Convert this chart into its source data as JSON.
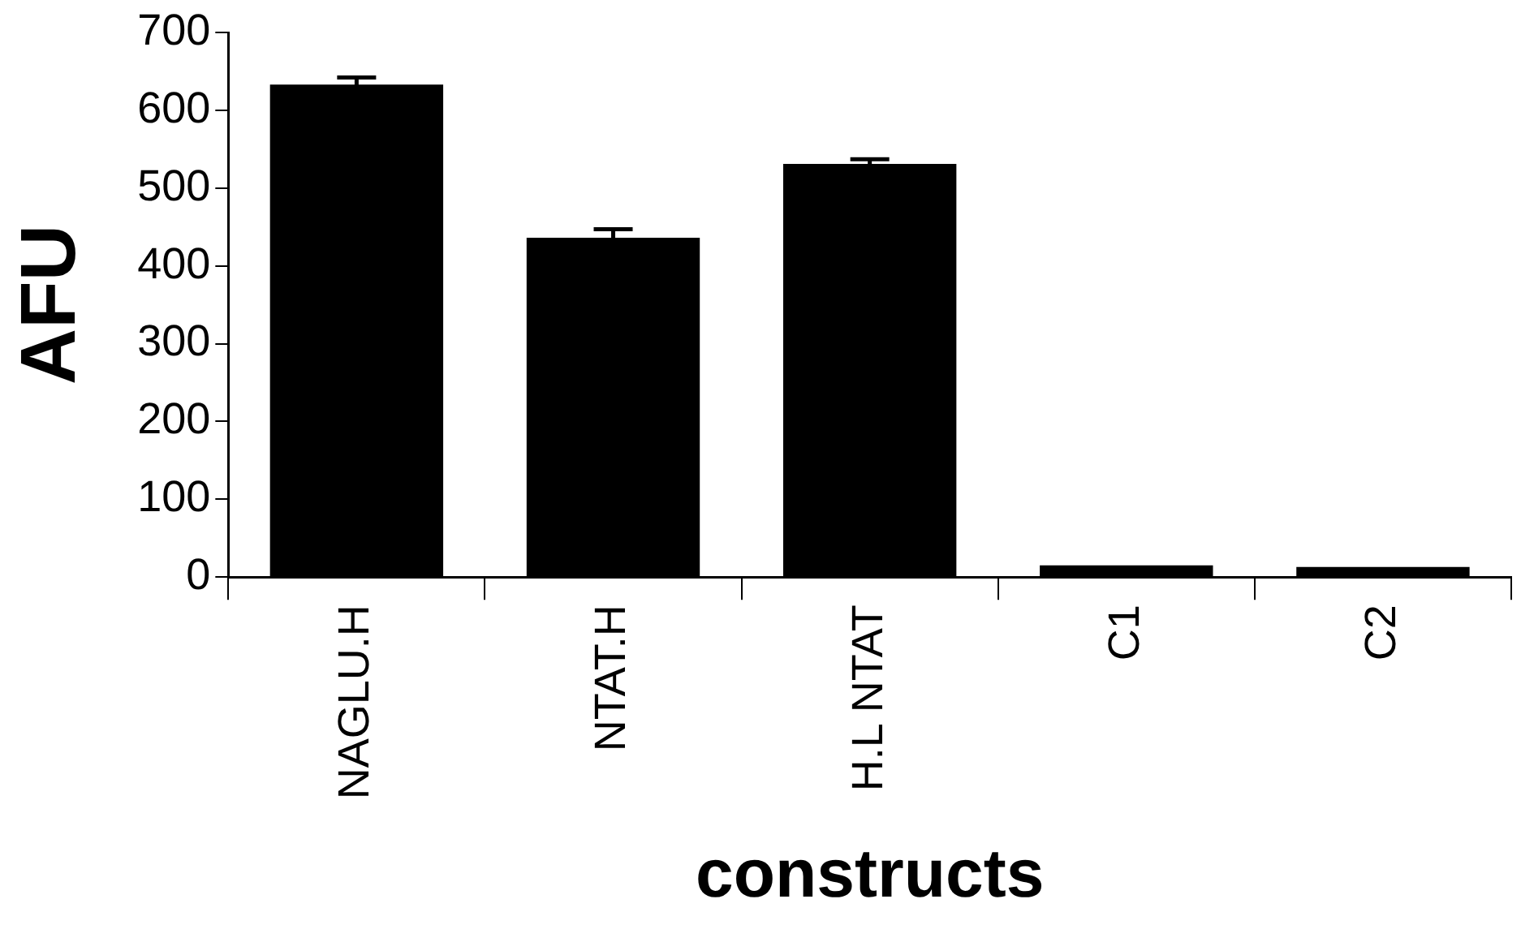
{
  "chart_data": {
    "type": "bar",
    "xlabel": "constructs",
    "ylabel": "AFU",
    "categories": [
      "NAGLU.H",
      "NTAT.H",
      "H.L NTAT",
      "C1",
      "C2"
    ],
    "values": [
      633,
      436,
      531,
      15,
      13
    ],
    "errors": [
      9,
      11,
      6,
      null,
      null
    ],
    "color": "#000000",
    "ylim": [
      0,
      700
    ],
    "yticks": [
      0,
      100,
      200,
      300,
      400,
      500,
      600,
      700
    ],
    "grid": false,
    "legend": false
  }
}
